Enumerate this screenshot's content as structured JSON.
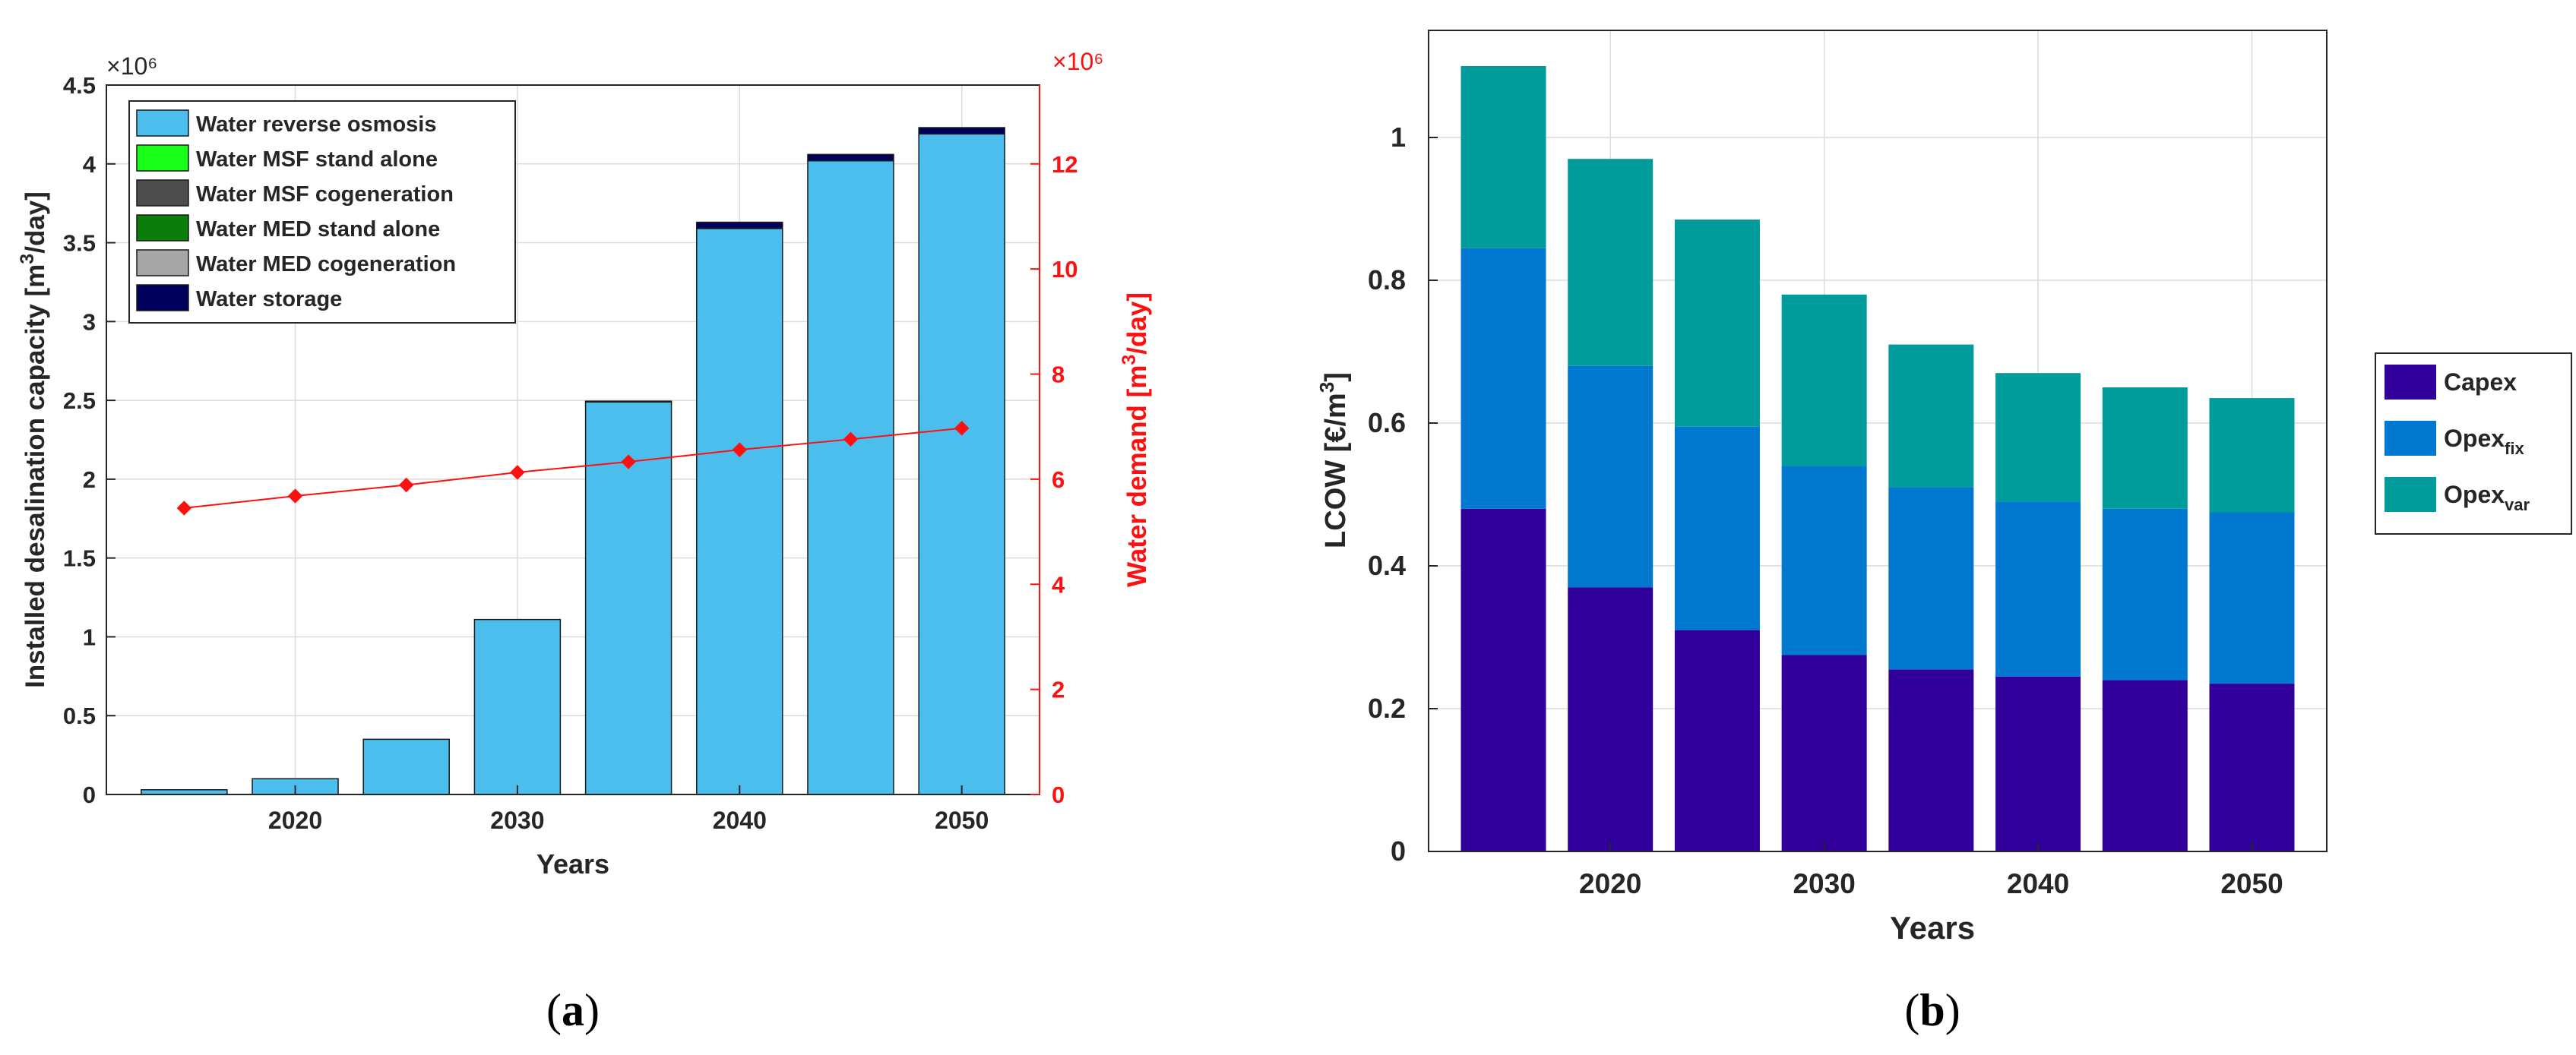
{
  "colors": {
    "ro": "#4cbeed",
    "msf_stand_alone": "#1aff1a",
    "msf_cogeneration": "#4d4d4d",
    "med_stand_alone": "#0b7d0b",
    "med_cogeneration": "#a6a6a6",
    "storage": "#00005a",
    "demand": "#ff1010",
    "capex": "#31009b",
    "opex_fix": "#0078d0",
    "opex_var": "#009b9b",
    "grid": "#dcdcdc",
    "axis_text": "#262626"
  },
  "chart_data": [
    {
      "type": "bar",
      "panel_label": "a",
      "title": "",
      "xlabel": "Years",
      "ylabel_left": "Installed desalination capacity [m³/day]",
      "ylabel_left_parts": [
        "Installed desalination capacity [m",
        "3",
        "/day]"
      ],
      "ylabel_right": "Water demand [m³/day]",
      "ylabel_right_parts": [
        "Water demand [m",
        "3",
        "/day]"
      ],
      "left_exponent_label": "×10⁶",
      "right_exponent_label": "×10⁶",
      "ylim_left": [
        0,
        4500000
      ],
      "ylim_right": [
        0,
        13500000
      ],
      "xlim": [
        2011.5,
        2053.5
      ],
      "left_ticks": [
        "0",
        "0.5",
        "1",
        "1.5",
        "2",
        "2.5",
        "3",
        "3.5",
        "4",
        "4.5"
      ],
      "right_ticks": [
        "0",
        "2",
        "4",
        "6",
        "8",
        "10",
        "12"
      ],
      "x_ticks": [
        "2020",
        "2030",
        "2040",
        "2050"
      ],
      "x": [
        2015,
        2020,
        2025,
        2030,
        2035,
        2040,
        2045,
        2050
      ],
      "series": [
        {
          "name": "Water reverse osmosis",
          "key": "ro",
          "values": [
            30000,
            100000,
            350000,
            1110000,
            2490000,
            3590000,
            4020000,
            4190000
          ]
        },
        {
          "name": "Water MSF stand alone",
          "key": "msf_stand_alone",
          "values": [
            0,
            0,
            0,
            0,
            0,
            0,
            0,
            0
          ]
        },
        {
          "name": "Water MSF cogeneration",
          "key": "msf_cogeneration",
          "values": [
            0,
            0,
            0,
            0,
            0,
            0,
            0,
            0
          ]
        },
        {
          "name": "Water MED stand alone",
          "key": "med_stand_alone",
          "values": [
            0,
            0,
            0,
            0,
            0,
            0,
            0,
            0
          ]
        },
        {
          "name": "Water MED cogeneration",
          "key": "med_cogeneration",
          "values": [
            0,
            0,
            0,
            0,
            0,
            0,
            0,
            0
          ]
        },
        {
          "name": "Water storage",
          "key": "storage",
          "values": [
            0,
            0,
            0,
            0,
            5000,
            40000,
            40000,
            40000
          ]
        }
      ],
      "line_series": {
        "name": "Water demand",
        "axis": "right",
        "values": [
          5450000,
          5680000,
          5890000,
          6130000,
          6330000,
          6560000,
          6760000,
          6970000
        ]
      },
      "legend": [
        "Water reverse osmosis",
        "Water MSF stand alone",
        "Water MSF cogeneration",
        "Water MED stand alone",
        "Water MED cogeneration",
        "Water storage"
      ],
      "legend_position": "top-left",
      "grid": true
    },
    {
      "type": "bar",
      "stacked": true,
      "panel_label": "b",
      "title": "",
      "xlabel": "Years",
      "ylabel": "LCOW [€/m³]",
      "ylabel_parts": [
        "LCOW [€/m",
        "3",
        "]"
      ],
      "ylim": [
        0,
        1.15
      ],
      "xlim": [
        2011.5,
        2053.5
      ],
      "y_ticks": [
        "0",
        "0.2",
        "0.4",
        "0.6",
        "0.8",
        "1"
      ],
      "x_ticks": [
        "2020",
        "2030",
        "2040",
        "2050"
      ],
      "x": [
        2015,
        2020,
        2025,
        2030,
        2035,
        2040,
        2045,
        2050
      ],
      "series": [
        {
          "name": "Capex",
          "key": "capex",
          "values": [
            0.48,
            0.37,
            0.31,
            0.275,
            0.255,
            0.245,
            0.24,
            0.235
          ]
        },
        {
          "name": "Opex fix",
          "key": "opex_fix",
          "values": [
            0.365,
            0.31,
            0.285,
            0.265,
            0.255,
            0.245,
            0.24,
            0.24
          ]
        },
        {
          "name": "Opex var",
          "key": "opex_var",
          "values": [
            0.255,
            0.29,
            0.29,
            0.24,
            0.2,
            0.18,
            0.17,
            0.16
          ]
        }
      ],
      "legend": [
        {
          "label": "Capex",
          "sub": ""
        },
        {
          "label": "Opex",
          "sub": "fix"
        },
        {
          "label": "Opex",
          "sub": "var"
        }
      ],
      "legend_position": "outside-right",
      "grid": true
    }
  ],
  "captions": {
    "a": {
      "open": "(",
      "label": "a",
      "close": ")"
    },
    "b": {
      "open": "(",
      "label": "b",
      "close": ")"
    }
  }
}
